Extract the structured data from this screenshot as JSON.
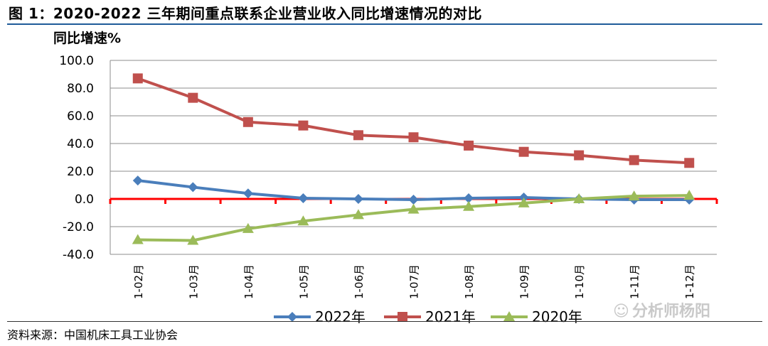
{
  "figure": {
    "title": "图 1：2020-2022 三年期间重点联系企业营业收入同比增速情况的对比",
    "source": "资料来源：中国机床工具工业协会",
    "watermark": "分析师杨阳",
    "watermark_icon": "wechat-icon"
  },
  "chart_data": {
    "type": "line",
    "ylabel": "同比增速%",
    "xlabel": "",
    "ylim": [
      -40,
      100
    ],
    "yticks": [
      100,
      80,
      60,
      40,
      20,
      0,
      -20,
      -40
    ],
    "ytick_labels": [
      "100.0",
      "80.0",
      "60.0",
      "40.0",
      "20.0",
      "0.0",
      "-20.0",
      "-40.0"
    ],
    "categories": [
      "1-02月",
      "1-03月",
      "1-04月",
      "1-05月",
      "1-06月",
      "1-07月",
      "1-08月",
      "1-09月",
      "1-10月",
      "1-11月",
      "1-12月"
    ],
    "grid": "horizontal",
    "zero_line_color": "#ff0000",
    "legend_position": "bottom",
    "series": [
      {
        "name": "2022年",
        "color": "#4a7ebb",
        "marker": "diamond",
        "values": [
          13.3,
          8.5,
          4.0,
          0.5,
          0.0,
          -0.5,
          0.5,
          1.0,
          0.0,
          -0.5,
          -0.5
        ]
      },
      {
        "name": "2021年",
        "color": "#c0504d",
        "marker": "square",
        "values": [
          87.0,
          73.0,
          55.5,
          53.0,
          46.0,
          44.5,
          38.5,
          34.0,
          31.5,
          28.0,
          26.0
        ]
      },
      {
        "name": "2020年",
        "color": "#9bbb59",
        "marker": "triangle",
        "values": [
          -29.5,
          -30.0,
          -21.5,
          -16.0,
          -11.5,
          -7.5,
          -5.5,
          -3.0,
          0.0,
          2.0,
          2.5
        ]
      }
    ]
  }
}
